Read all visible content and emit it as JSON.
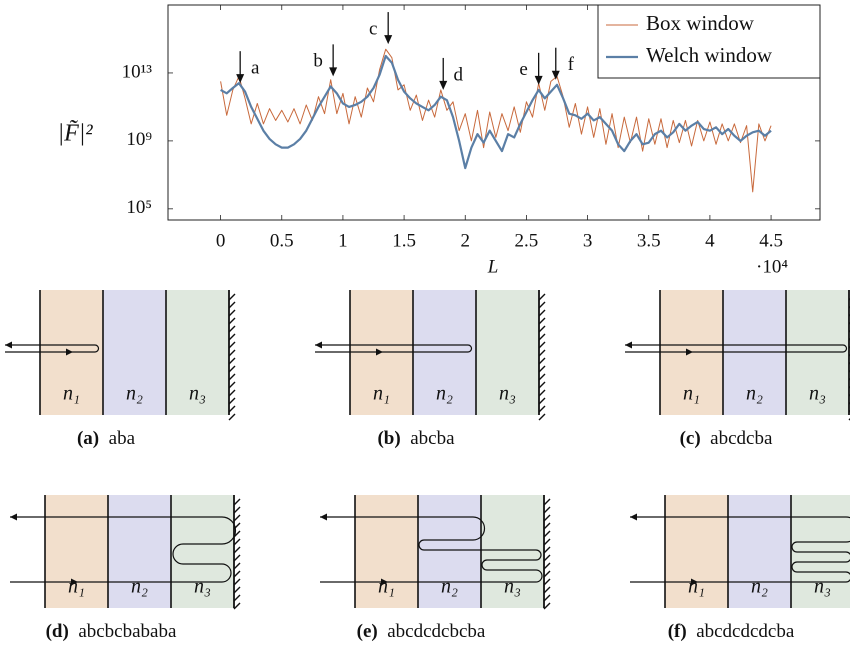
{
  "chart_data": {
    "type": "line",
    "y_label": "|F̃|²",
    "x_label": "L",
    "x_multiplier": "·10⁴",
    "log_y": true,
    "legend": "upper right",
    "xlim": [
      -0.43,
      4.9
    ],
    "ylim": [
      22000,
      1e+17
    ],
    "xticks": [
      0,
      0.5,
      1,
      1.5,
      2,
      2.5,
      3,
      3.5,
      4,
      4.5
    ],
    "yticks": [
      {
        "value": 100000,
        "label": "10⁵"
      },
      {
        "value": 1000000000,
        "label": "10⁹"
      },
      {
        "value": 10000000000000,
        "label": "10¹³"
      }
    ],
    "x": [
      0,
      0.05,
      0.1,
      0.15,
      0.2,
      0.25,
      0.3,
      0.35,
      0.4,
      0.45,
      0.5,
      0.55,
      0.6,
      0.65,
      0.7,
      0.75,
      0.8,
      0.85,
      0.9,
      0.95,
      1,
      1.05,
      1.1,
      1.15,
      1.2,
      1.25,
      1.3,
      1.35,
      1.4,
      1.45,
      1.5,
      1.55,
      1.6,
      1.65,
      1.7,
      1.75,
      1.8,
      1.85,
      1.9,
      1.95,
      2,
      2.05,
      2.1,
      2.15,
      2.2,
      2.25,
      2.3,
      2.35,
      2.4,
      2.45,
      2.5,
      2.55,
      2.6,
      2.65,
      2.7,
      2.75,
      2.8,
      2.85,
      2.9,
      2.95,
      3,
      3.05,
      3.1,
      3.15,
      3.2,
      3.25,
      3.3,
      3.35,
      3.4,
      3.45,
      3.5,
      3.55,
      3.6,
      3.65,
      3.7,
      3.75,
      3.8,
      3.85,
      3.9,
      3.95,
      4,
      4.05,
      4.1,
      4.15,
      4.2,
      4.25,
      4.3,
      4.35,
      4.4,
      4.45,
      4.5
    ],
    "series": [
      {
        "name": "Box window",
        "color": "#c8693c",
        "values": [
          3200000000000.0,
          32000000000.0,
          1000000000000.0,
          6300000000000.0,
          320000000000.0,
          10000000000.0,
          160000000000.0,
          10000000000.0,
          79000000000.0,
          16000000000.0,
          63000000000.0,
          13000000000.0,
          79000000000.0,
          10000000000.0,
          130000000000.0,
          16000000000.0,
          400000000000.0,
          40000000000.0,
          4000000000000.0,
          40000000000.0,
          630000000000.0,
          10000000000.0,
          400000000000.0,
          25000000000.0,
          1300000000000.0,
          200000000000.0,
          16000000000000.0,
          250000000000000.0,
          79000000000000.0,
          1000000000000.0,
          2000000000000.0,
          63000000000.0,
          500000000000.0,
          16000000000.0,
          250000000000.0,
          25000000000.0,
          1000000000000.0,
          63000000000.0,
          200000000000.0,
          4000000000.0,
          40000000000.0,
          1000000000.0,
          63000000000.0,
          400000000.0,
          50000000000.0,
          1600000000.0,
          40000000000.0,
          4000000000.0,
          100000000000.0,
          3200000000.0,
          200000000000.0,
          25000000000.0,
          2500000000000.0,
          63000000000.0,
          3200000000000.0,
          6300000000000.0,
          400000000000.0,
          6300000000.0,
          160000000000.0,
          2500000000.0,
          100000000000.0,
          1600000000.0,
          79000000000.0,
          630000000.0,
          40000000000.0,
          400000000.0,
          25000000000.0,
          790000000.0,
          25000000000.0,
          250000000.0,
          20000000000.0,
          630000000.0,
          20000000000.0,
          400000000.0,
          16000000000.0,
          790000000.0,
          16000000000.0,
          500000000.0,
          16000000000.0,
          1000000000.0,
          13000000000.0,
          630000000.0,
          10000000000.0,
          1000000000.0,
          10000000000.0,
          790000000.0,
          7900000000.0,
          1000000.0,
          10000000000.0,
          1000000000.0,
          7900000000.0
        ]
      },
      {
        "name": "Welch window",
        "color": "#5b7fa6",
        "values": [
          1000000000000.0,
          630000000000.0,
          1300000000000.0,
          2500000000000.0,
          790000000000.0,
          100000000000.0,
          20000000000.0,
          4000000000.0,
          1300000000.0,
          630000000.0,
          400000000.0,
          400000000.0,
          630000000.0,
          1300000000.0,
          4000000000.0,
          20000000000.0,
          100000000000.0,
          400000000000.0,
          1600000000000.0,
          630000000000.0,
          160000000000.0,
          100000000000.0,
          130000000000.0,
          200000000000.0,
          400000000000.0,
          1300000000000.0,
          7900000000000.0,
          100000000000000.0,
          40000000000000.0,
          4000000000000.0,
          790000000000.0,
          320000000000.0,
          160000000000.0,
          100000000000.0,
          63000000000.0,
          130000000000.0,
          400000000000.0,
          250000000000.0,
          25000000000.0,
          1000000000.0,
          25000000.0,
          400000000.0,
          2500000000.0,
          790000000.0,
          4000000000.0,
          1000000000.0,
          250000000.0,
          2500000000.0,
          1600000000.0,
          10000000000.0,
          50000000000.0,
          250000000000.0,
          1000000000000.0,
          320000000000.0,
          790000000000.0,
          2000000000000.0,
          320000000000.0,
          40000000000.0,
          32000000000.0,
          20000000000.0,
          40000000000.0,
          16000000000.0,
          25000000000.0,
          10000000000.0,
          4000000000.0,
          630000000.0,
          250000000.0,
          1000000000.0,
          2500000000.0,
          630000000.0,
          790000000.0,
          2500000000.0,
          4000000000.0,
          1600000000.0,
          3200000000.0,
          10000000000.0,
          4000000000.0,
          7900000000.0,
          13000000000.0,
          5000000000.0,
          4000000000.0,
          6300000000.0,
          2500000000.0,
          5000000000.0,
          2000000000.0,
          1000000000.0,
          2000000000.0,
          3200000000.0,
          4000000000.0,
          2000000000.0,
          4000000000.0
        ]
      }
    ],
    "annotations": [
      {
        "text": "a",
        "x": 0.16,
        "y": 2500000000000.0
      },
      {
        "text": "b",
        "x": 0.92,
        "y": 6300000000000.0
      },
      {
        "text": "c",
        "x": 1.37,
        "y": 500000000000000.0
      },
      {
        "text": "d",
        "x": 1.82,
        "y": 1000000000000.0
      },
      {
        "text": "e",
        "x": 2.6,
        "y": 2000000000000.0
      },
      {
        "text": "f",
        "x": 2.74,
        "y": 4000000000000.0
      }
    ]
  },
  "panels": [
    {
      "tag": "(a)",
      "caption": "aba",
      "layers": [
        "n₁",
        "n₂",
        "n₃"
      ]
    },
    {
      "tag": "(b)",
      "caption": "abcba",
      "layers": [
        "n₁",
        "n₂",
        "n₃"
      ]
    },
    {
      "tag": "(c)",
      "caption": "abcdcba",
      "layers": [
        "n₁",
        "n₂",
        "n₃"
      ]
    },
    {
      "tag": "(d)",
      "caption": "abcbcbababa",
      "layers": [
        "n₁",
        "n₂",
        "n₃"
      ]
    },
    {
      "tag": "(e)",
      "caption": "abcdcdcbcba",
      "layers": [
        "n₁",
        "n₂",
        "n₃"
      ]
    },
    {
      "tag": "(f)",
      "caption": "abcdcdcdcba",
      "layers": [
        "n₁",
        "n₂",
        "n₃"
      ]
    }
  ]
}
